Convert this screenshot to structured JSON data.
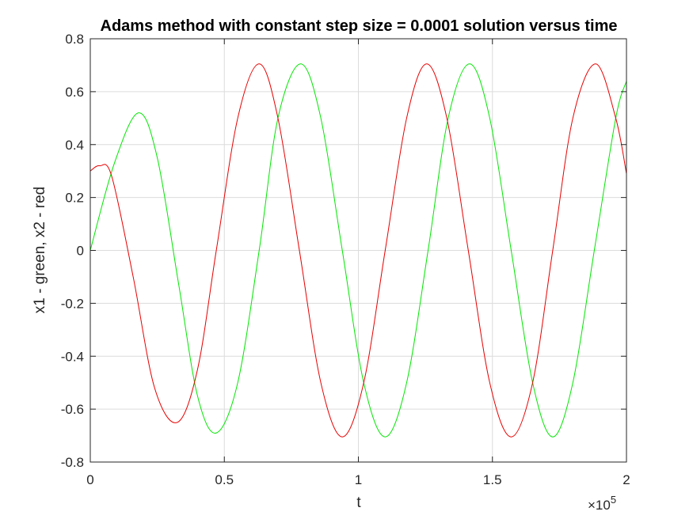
{
  "chart_data": {
    "type": "line",
    "title": "Adams method with constant step size = 0.0001 solution versus time",
    "xlabel": "t",
    "ylabel": "x1 - green, x2 - red",
    "x_exponent_base": "×10",
    "x_exponent_power": "5",
    "xlim": [
      0,
      2
    ],
    "ylim": [
      -0.8,
      0.8
    ],
    "grid": true,
    "x_ticks": [
      {
        "value": 0,
        "label": "0"
      },
      {
        "value": 0.5,
        "label": "0.5"
      },
      {
        "value": 1,
        "label": "1"
      },
      {
        "value": 1.5,
        "label": "1.5"
      },
      {
        "value": 2,
        "label": "2"
      }
    ],
    "y_ticks": [
      {
        "value": 0.8,
        "label": "0.8"
      },
      {
        "value": 0.6,
        "label": "0.6"
      },
      {
        "value": 0.4,
        "label": "0.4"
      },
      {
        "value": 0.2,
        "label": "0.2"
      },
      {
        "value": 0,
        "label": "0"
      },
      {
        "value": -0.2,
        "label": "-0.2"
      },
      {
        "value": -0.4,
        "label": "-0.4"
      },
      {
        "value": -0.6,
        "label": "-0.6"
      },
      {
        "value": -0.8,
        "label": "-0.8"
      }
    ],
    "series": [
      {
        "color": "#00e600",
        "x": [
          0,
          0.09,
          0.18,
          0.25,
          0.33,
          0.4,
          0.47,
          0.55,
          0.63,
          0.7,
          0.785,
          0.86,
          0.94,
          1.02,
          1.1,
          1.18,
          1.26,
          1.335,
          1.415,
          1.49,
          1.57,
          1.65,
          1.725,
          1.8,
          1.88,
          1.96,
          2.0
        ],
        "y": [
          0.0,
          0.33,
          0.52,
          0.35,
          -0.13,
          -0.55,
          -0.69,
          -0.5,
          0.0,
          0.5,
          0.705,
          0.5,
          0.0,
          -0.5,
          -0.705,
          -0.5,
          0.0,
          0.5,
          0.705,
          0.5,
          0.0,
          -0.5,
          -0.705,
          -0.5,
          0.0,
          0.5,
          0.64
        ]
      },
      {
        "color": "#e60000",
        "x": [
          0,
          0.035,
          0.08,
          0.16,
          0.24,
          0.325,
          0.4,
          0.47,
          0.55,
          0.63,
          0.7,
          0.78,
          0.86,
          0.94,
          1.02,
          1.1,
          1.18,
          1.255,
          1.33,
          1.41,
          1.49,
          1.57,
          1.65,
          1.725,
          1.8,
          1.885,
          1.96,
          2.0
        ],
        "y": [
          0.3,
          0.32,
          0.28,
          -0.1,
          -0.52,
          -0.65,
          -0.45,
          0.0,
          0.5,
          0.705,
          0.5,
          0.0,
          -0.5,
          -0.705,
          -0.5,
          0.0,
          0.5,
          0.705,
          0.5,
          0.0,
          -0.5,
          -0.705,
          -0.5,
          0.0,
          0.5,
          0.705,
          0.5,
          0.29
        ]
      }
    ]
  }
}
